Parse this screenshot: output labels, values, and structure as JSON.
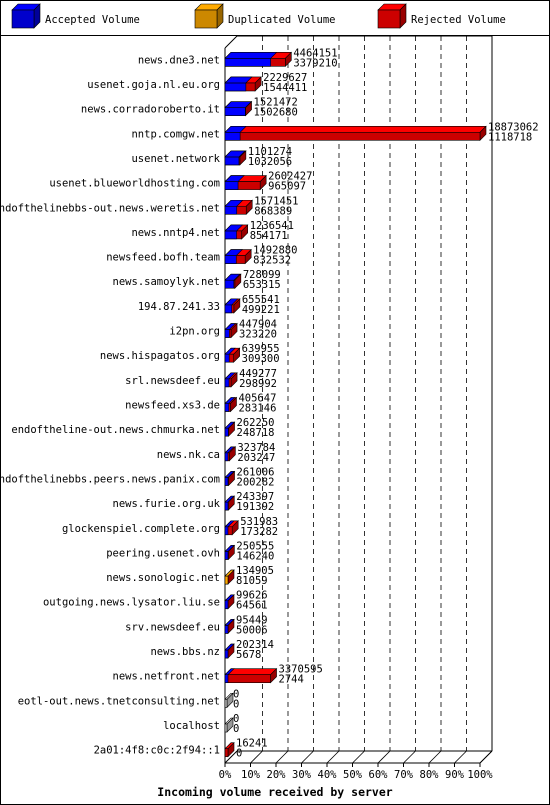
{
  "chart_data": {
    "type": "bar",
    "title": "",
    "xlabel": "Incoming volume received by server",
    "ylabel": "",
    "xlim": [
      0,
      100
    ],
    "x_tick_labels": [
      "0%",
      "10%",
      "20%",
      "30%",
      "40%",
      "50%",
      "60%",
      "70%",
      "80%",
      "90%",
      "100%"
    ],
    "legend_position": "top",
    "series": [
      {
        "name": "Accepted Volume",
        "color": "#0000ff"
      },
      {
        "name": "Duplicated Volume",
        "color": "#ffaa00"
      },
      {
        "name": "Rejected Volume",
        "color": "#ff0000"
      }
    ],
    "rows": [
      {
        "server": "news.dne3.net",
        "total": 4464151,
        "accepted": 3379210,
        "acc_color": "blue"
      },
      {
        "server": "usenet.goja.nl.eu.org",
        "total": 2229627,
        "accepted": 1544411,
        "acc_color": "blue"
      },
      {
        "server": "news.corradoroberto.it",
        "total": 1521472,
        "accepted": 1502680,
        "acc_color": "blue"
      },
      {
        "server": "nntp.comgw.net",
        "total": 18873062,
        "accepted": 1118718,
        "acc_color": "blue"
      },
      {
        "server": "usenet.network",
        "total": 1101274,
        "accepted": 1032056,
        "acc_color": "blue"
      },
      {
        "server": "usenet.blueworldhosting.com",
        "total": 2602427,
        "accepted": 965097,
        "acc_color": "blue"
      },
      {
        "server": "endofthelinebbs-out.news.weretis.net",
        "total": 1571451,
        "accepted": 868389,
        "acc_color": "blue"
      },
      {
        "server": "news.nntp4.net",
        "total": 1236541,
        "accepted": 854171,
        "acc_color": "blue"
      },
      {
        "server": "newsfeed.bofh.team",
        "total": 1492880,
        "accepted": 832532,
        "acc_color": "blue"
      },
      {
        "server": "news.samoylyk.net",
        "total": 728099,
        "accepted": 653315,
        "acc_color": "blue"
      },
      {
        "server": "194.87.241.33",
        "total": 655541,
        "accepted": 499221,
        "acc_color": "blue"
      },
      {
        "server": "i2pn.org",
        "total": 447904,
        "accepted": 323220,
        "acc_color": "blue"
      },
      {
        "server": "news.hispagatos.org",
        "total": 639955,
        "accepted": 309300,
        "acc_color": "blue"
      },
      {
        "server": "srl.newsdeef.eu",
        "total": 449277,
        "accepted": 298992,
        "acc_color": "blue"
      },
      {
        "server": "newsfeed.xs3.de",
        "total": 405647,
        "accepted": 283146,
        "acc_color": "blue"
      },
      {
        "server": "endoftheline-out.news.chmurka.net",
        "total": 262250,
        "accepted": 248718,
        "acc_color": "blue"
      },
      {
        "server": "news.nk.ca",
        "total": 323784,
        "accepted": 203247,
        "acc_color": "blue"
      },
      {
        "server": "endofthelinebbs.peers.news.panix.com",
        "total": 261006,
        "accepted": 200282,
        "acc_color": "blue"
      },
      {
        "server": "news.furie.org.uk",
        "total": 243397,
        "accepted": 191392,
        "acc_color": "blue"
      },
      {
        "server": "glockenspiel.complete.org",
        "total": 531983,
        "accepted": 173282,
        "acc_color": "blue"
      },
      {
        "server": "peering.usenet.ovh",
        "total": 250555,
        "accepted": 146240,
        "acc_color": "blue"
      },
      {
        "server": "news.sonologic.net",
        "total": 134905,
        "accepted": 81059,
        "acc_color": "orange"
      },
      {
        "server": "outgoing.news.lysator.liu.se",
        "total": 99626,
        "accepted": 64561,
        "acc_color": "blue"
      },
      {
        "server": "srv.newsdeef.eu",
        "total": 95449,
        "accepted": 50006,
        "acc_color": "blue"
      },
      {
        "server": "news.bbs.nz",
        "total": 202314,
        "accepted": 5678,
        "acc_color": "blue"
      },
      {
        "server": "news.netfront.net",
        "total": 3370595,
        "accepted": 2744,
        "acc_color": "blue"
      },
      {
        "server": "eotl-out.news.tnetconsulting.net",
        "total": 0,
        "accepted": 0,
        "acc_color": "blue"
      },
      {
        "server": "localhost",
        "total": 0,
        "accepted": 0,
        "acc_color": "blue"
      },
      {
        "server": "2a01:4f8:c0c:2f94::1",
        "total": 16241,
        "accepted": 0,
        "acc_color": "blue"
      }
    ]
  }
}
